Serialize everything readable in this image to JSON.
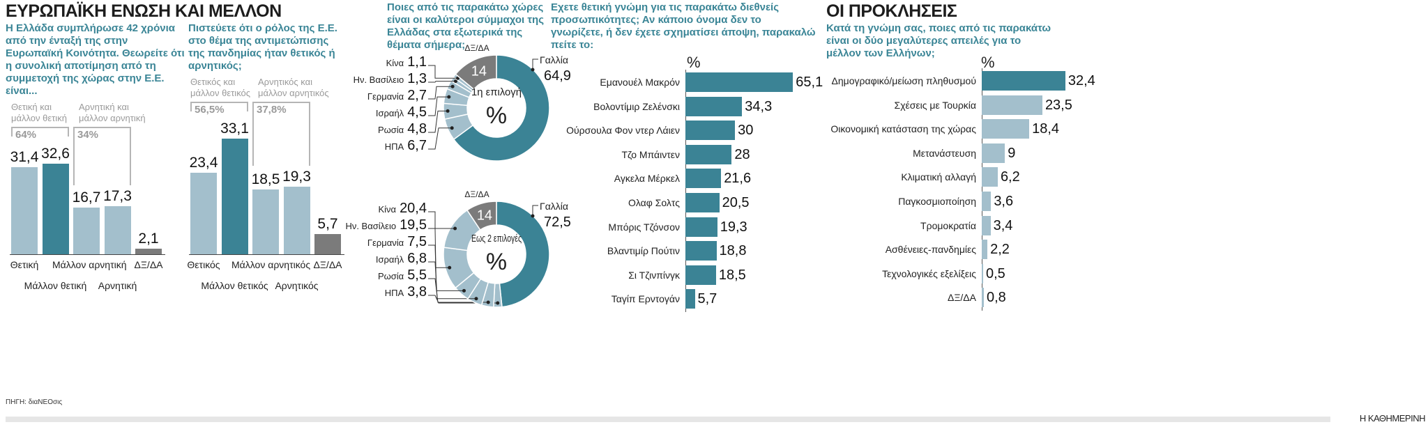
{
  "header": {
    "title": "ΕΥΡΩΠΑΪΚΗ ΕΝΩΣΗ ΚΑΙ ΜΕΛΛΟΝ",
    "right_title": "ΟΙ ΠΡΟΚΛΗΣΕΙΣ"
  },
  "colors": {
    "dark": "#3b8395",
    "light": "#a3bfcc",
    "gray": "#7b7b7b",
    "bracket": "#b5b5b5"
  },
  "chart_data": [
    {
      "type": "bar",
      "title": "Η Ελλάδα συμπλήρωσε 42 χρόνια από την ένταξή της στην Ευρωπαϊκή Κοινότητα. Θεωρείτε ότι η συνολική αποτίμηση από τη συμμετοχή της χώρας στην Ε.Ε. είναι...",
      "categories": [
        "Θετική",
        "Μάλλον θετική",
        "Μάλλον αρνητική",
        "Αρνητική",
        "ΔΞ/ΔΑ"
      ],
      "values": [
        31.4,
        32.6,
        16.7,
        17.3,
        2.1
      ],
      "value_labels": [
        "31,4",
        "32,6",
        "16,7",
        "17,3",
        "2,1"
      ],
      "groups": [
        {
          "label": "Θετική και μάλλον θετική",
          "total": "64%"
        },
        {
          "label": "Αρνητική και μάλλον αρνητική",
          "total": "34%"
        }
      ]
    },
    {
      "type": "bar",
      "title": "Πιστεύετε ότι ο ρόλος της Ε.Ε. στο θέμα της αντιμετώπισης της πανδημίας ήταν θετικός ή αρνητικός;",
      "categories": [
        "Θετικός",
        "Μάλλον θετικός",
        "Μάλλον αρνητικός",
        "Αρνητικός",
        "ΔΞ/ΔΑ"
      ],
      "values": [
        23.4,
        33.1,
        18.5,
        19.3,
        5.7
      ],
      "value_labels": [
        "23,4",
        "33,1",
        "18,5",
        "19,3",
        "5,7"
      ],
      "groups": [
        {
          "label": "Θετικός και μάλλον θετικός",
          "total": "56,5%"
        },
        {
          "label": "Αρνητικός και μάλλον αρνητικός",
          "total": "37,8%"
        }
      ]
    },
    {
      "type": "pie",
      "title": "Ποιες από τις παρακάτω χώρες είναι οι καλύτεροι σύμμαχοι της Ελλάδας στα εξωτερικά της θέματα σήμερα;",
      "center_label": "1η επιλογή",
      "unit": "%",
      "slices": [
        {
          "label": "Γαλλία",
          "value": 64.9,
          "text": "64,9"
        },
        {
          "label": "ΗΠΑ",
          "value": 6.7,
          "text": "6,7"
        },
        {
          "label": "Ρωσία",
          "value": 4.8,
          "text": "4,8"
        },
        {
          "label": "Ισραήλ",
          "value": 4.5,
          "text": "4,5"
        },
        {
          "label": "Γερμανία",
          "value": 2.7,
          "text": "2,7"
        },
        {
          "label": "Ην. Βασίλειο",
          "value": 1.3,
          "text": "1,3"
        },
        {
          "label": "Κίνα",
          "value": 1.1,
          "text": "1,1"
        },
        {
          "label": "ΔΞ/ΔΑ",
          "value": 14,
          "text": "14"
        }
      ]
    },
    {
      "type": "pie",
      "center_label": "Εως 2 επιλογές",
      "unit": "%",
      "slices": [
        {
          "label": "Γαλλία",
          "value": 72.5,
          "text": "72,5"
        },
        {
          "label": "ΗΠΑ",
          "value": 3.8,
          "text": "3,8"
        },
        {
          "label": "Ρωσία",
          "value": 5.5,
          "text": "5,5"
        },
        {
          "label": "Ισραήλ",
          "value": 6.8,
          "text": "6,8"
        },
        {
          "label": "Γερμανία",
          "value": 7.5,
          "text": "7,5"
        },
        {
          "label": "Ην. Βασίλειο",
          "value": 19.5,
          "text": "19,5"
        },
        {
          "label": "Κίνα",
          "value": 20.4,
          "text": "20,4"
        },
        {
          "label": "ΔΞ/ΔΑ",
          "value": 14,
          "text": "14"
        }
      ]
    },
    {
      "type": "bar",
      "orientation": "horizontal",
      "title": "Εχετε θετική γνώμη για τις παρακάτω διεθνείς προσωπικότητες; Αν κάποιο όνομα δεν το γνωρίζετε, ή δεν έχετε σχηματίσει άποψη, παρακαλώ πείτε το:",
      "unit": "%",
      "categories": [
        "Εμανουέλ Μακρόν",
        "Βολοντίμιρ Ζελένσκι",
        "Ούρσουλα Φον ντερ Λάιεν",
        "Τζο Μπάιντεν",
        "Αγκελα Μέρκελ",
        "Ολαφ Σολτς",
        "Μπόρις Τζόνσον",
        "Βλαντιμίρ Πούτιν",
        "Σι Τζινπίνγκ",
        "Ταγίπ Ερντογάν"
      ],
      "values": [
        65.1,
        34.3,
        30,
        28,
        21.6,
        20.5,
        19.3,
        18.8,
        18.5,
        5.7
      ],
      "value_labels": [
        "65,1",
        "34,3",
        "30",
        "28",
        "21,6",
        "20,5",
        "19,3",
        "18,8",
        "18,5",
        "5,7"
      ]
    },
    {
      "type": "bar",
      "orientation": "horizontal",
      "title": "Κατά τη γνώμη σας, ποιες από τις παρακάτω είναι οι δύο μεγαλύτερες απειλές για το μέλλον των Ελλήνων;",
      "unit": "%",
      "categories": [
        "Δημογραφικό/μείωση πληθυσμού",
        "Σχέσεις με Τουρκία",
        "Οικονομική κατάσταση της χώρας",
        "Μετανάστευση",
        "Κλιματική αλλαγή",
        "Παγκοσμιοποίηση",
        "Τρομοκρατία",
        "Ασθένειες-πανδημίες",
        "Τεχνολογικές εξελίξεις",
        "ΔΞ/ΔΑ"
      ],
      "values": [
        32.4,
        23.5,
        18.4,
        9,
        6.2,
        3.6,
        3.4,
        2.2,
        0.5,
        0.8
      ],
      "value_labels": [
        "32,4",
        "23,5",
        "18,4",
        "9",
        "6,2",
        "3,6",
        "3,4",
        "2,2",
        "0,5",
        "0,8"
      ]
    }
  ],
  "footer": {
    "source": "ΠΗΓΗ: διαΝΕΟσις",
    "brand": "Η ΚΑΘΗΜΕΡΙΝΗ"
  }
}
